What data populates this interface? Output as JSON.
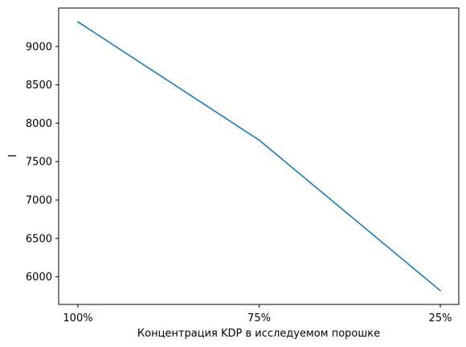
{
  "chart_data": {
    "type": "line",
    "categories": [
      "100%",
      "75%",
      "25%"
    ],
    "series": [
      {
        "values": [
          9320,
          7780,
          5820
        ],
        "color": "#1f77b4"
      }
    ],
    "xlabel": "Концентрация KDP в исследуемом порошке",
    "ylabel": "I",
    "ylim": [
      5640,
      9500
    ],
    "yticks": [
      6000,
      6500,
      7000,
      7500,
      8000,
      8500,
      9000
    ],
    "grid": false
  }
}
